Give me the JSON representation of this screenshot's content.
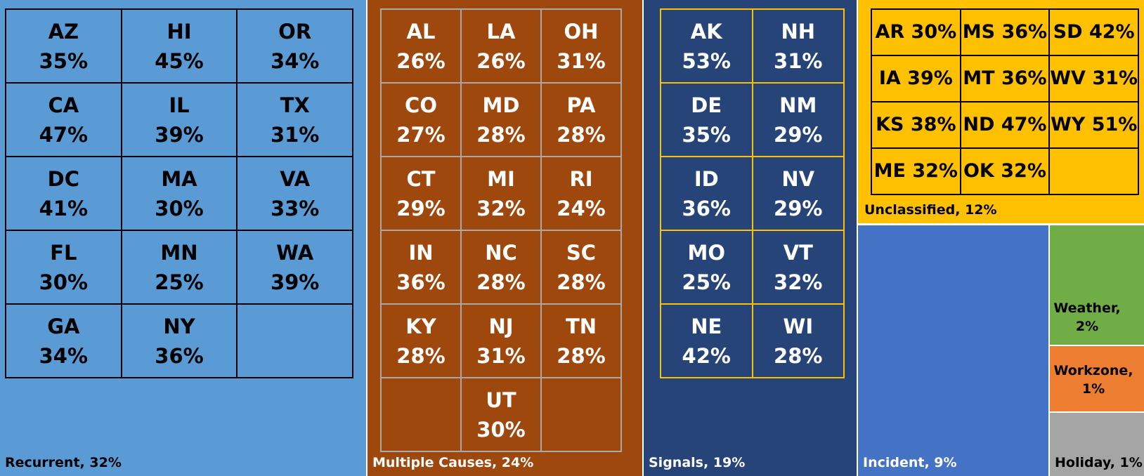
{
  "chart_data": {
    "type": "treemap",
    "categories": [
      {
        "key": "recurrent",
        "label": "Recurrent, 32%",
        "color": "#5b9bd5",
        "cells": [
          {
            "state": "AZ",
            "value": "35%"
          },
          {
            "state": "HI",
            "value": "45%"
          },
          {
            "state": "OR",
            "value": "34%"
          },
          {
            "state": "CA",
            "value": "47%"
          },
          {
            "state": "IL",
            "value": "39%"
          },
          {
            "state": "TX",
            "value": "31%"
          },
          {
            "state": "DC",
            "value": "41%"
          },
          {
            "state": "MA",
            "value": "30%"
          },
          {
            "state": "VA",
            "value": "33%"
          },
          {
            "state": "FL",
            "value": "30%"
          },
          {
            "state": "MN",
            "value": "25%"
          },
          {
            "state": "WA",
            "value": "39%"
          },
          {
            "state": "GA",
            "value": "34%"
          },
          {
            "state": "NY",
            "value": "36%"
          },
          null
        ]
      },
      {
        "key": "multiple",
        "label": "Multiple Causes, 24%",
        "color": "#9e480e",
        "cells": [
          {
            "state": "AL",
            "value": "26%"
          },
          {
            "state": "LA",
            "value": "26%"
          },
          {
            "state": "OH",
            "value": "31%"
          },
          {
            "state": "CO",
            "value": "27%"
          },
          {
            "state": "MD",
            "value": "28%"
          },
          {
            "state": "PA",
            "value": "28%"
          },
          {
            "state": "CT",
            "value": "29%"
          },
          {
            "state": "MI",
            "value": "32%"
          },
          {
            "state": "RI",
            "value": "24%"
          },
          {
            "state": "IN",
            "value": "36%"
          },
          {
            "state": "NC",
            "value": "28%"
          },
          {
            "state": "SC",
            "value": "28%"
          },
          {
            "state": "KY",
            "value": "28%"
          },
          {
            "state": "NJ",
            "value": "31%"
          },
          {
            "state": "TN",
            "value": "28%"
          },
          null,
          {
            "state": "UT",
            "value": "30%"
          },
          null
        ]
      },
      {
        "key": "signals",
        "label": "Signals, 19%",
        "color": "#264478",
        "cells": [
          {
            "state": "AK",
            "value": "53%"
          },
          {
            "state": "NH",
            "value": "31%"
          },
          {
            "state": "DE",
            "value": "35%"
          },
          {
            "state": "NM",
            "value": "29%"
          },
          {
            "state": "ID",
            "value": "36%"
          },
          {
            "state": "NV",
            "value": "29%"
          },
          {
            "state": "MO",
            "value": "25%"
          },
          {
            "state": "VT",
            "value": "32%"
          },
          {
            "state": "NE",
            "value": "42%"
          },
          {
            "state": "WI",
            "value": "28%"
          }
        ]
      },
      {
        "key": "unclassified",
        "label": "Unclassified, 12%",
        "color": "#ffc000",
        "cells": [
          {
            "state": "AR",
            "value": "30%"
          },
          {
            "state": "MS",
            "value": "36%"
          },
          {
            "state": "SD",
            "value": "42%"
          },
          {
            "state": "IA",
            "value": "39%"
          },
          {
            "state": "MT",
            "value": "36%"
          },
          {
            "state": "WV",
            "value": "31%"
          },
          {
            "state": "KS",
            "value": "38%"
          },
          {
            "state": "ND",
            "value": "47%"
          },
          {
            "state": "WY",
            "value": "51%"
          },
          {
            "state": "ME",
            "value": "32%"
          },
          {
            "state": "OK",
            "value": "32%"
          },
          null
        ]
      },
      {
        "key": "incident",
        "label": "Incident, 9%",
        "color": "#4472c4",
        "cells": []
      },
      {
        "key": "weather",
        "label_line1": "Weather,",
        "label_line2": "2%",
        "color": "#70ad47",
        "cells": []
      },
      {
        "key": "workzone",
        "label_line1": "Workzone,",
        "label_line2": "1%",
        "color": "#ed7d31",
        "cells": []
      },
      {
        "key": "holiday",
        "label": "Holiday, 1%",
        "color": "#a5a5a5",
        "cells": []
      }
    ]
  }
}
